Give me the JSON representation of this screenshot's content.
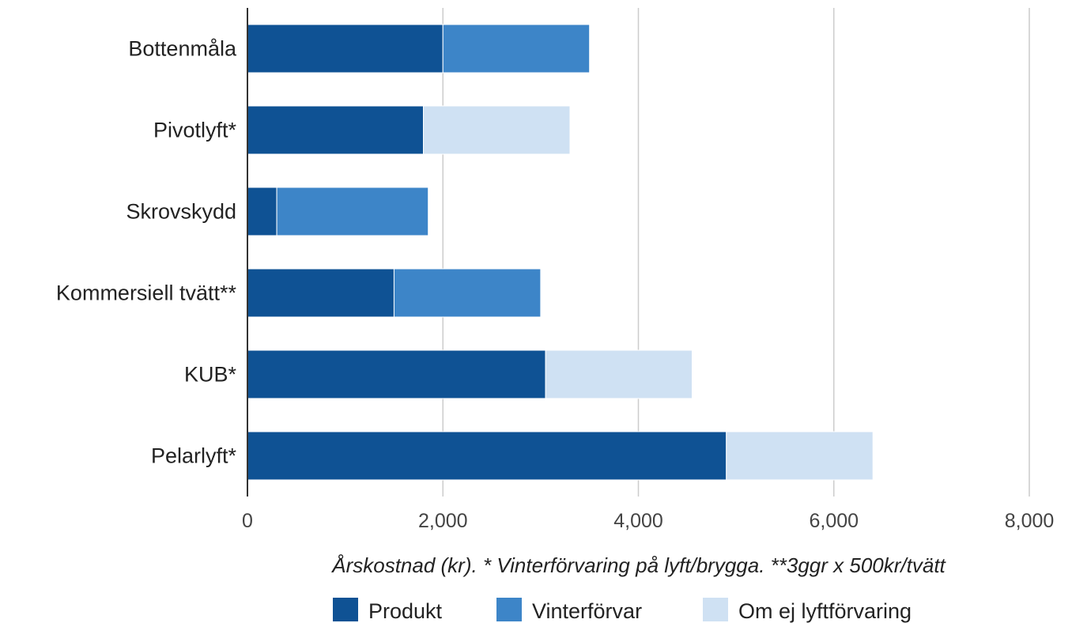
{
  "chart_data": {
    "type": "bar",
    "orientation": "horizontal",
    "stacked": true,
    "categories": [
      "Bottenmåla",
      "Pivotlyft*",
      "Skrovskydd",
      "Kommersiell tvätt**",
      "KUB*",
      "Pelarlyft*"
    ],
    "series": [
      {
        "name": "Produkt",
        "color": "#0f5294",
        "values": [
          2000,
          1800,
          300,
          1500,
          3050,
          4900
        ]
      },
      {
        "name": "Vinterförvar",
        "color": "#3d85c8",
        "values": [
          1500,
          0,
          1550,
          1500,
          0,
          0
        ]
      },
      {
        "name": "Om ej lyftförvaring",
        "color": "#cfe1f3",
        "values": [
          0,
          1500,
          0,
          0,
          1500,
          1500
        ]
      }
    ],
    "xlabel": "Årskostnad (kr). * Vinterförvaring på lyft/brygga. **3ggr x 500kr/tvätt",
    "xlim": [
      0,
      8000
    ],
    "xticks": [
      0,
      2000,
      4000,
      6000,
      8000
    ],
    "xtick_labels": [
      "0",
      "2,000",
      "4,000",
      "6,000",
      "8,000"
    ],
    "grid": true,
    "legend_position": "bottom"
  }
}
